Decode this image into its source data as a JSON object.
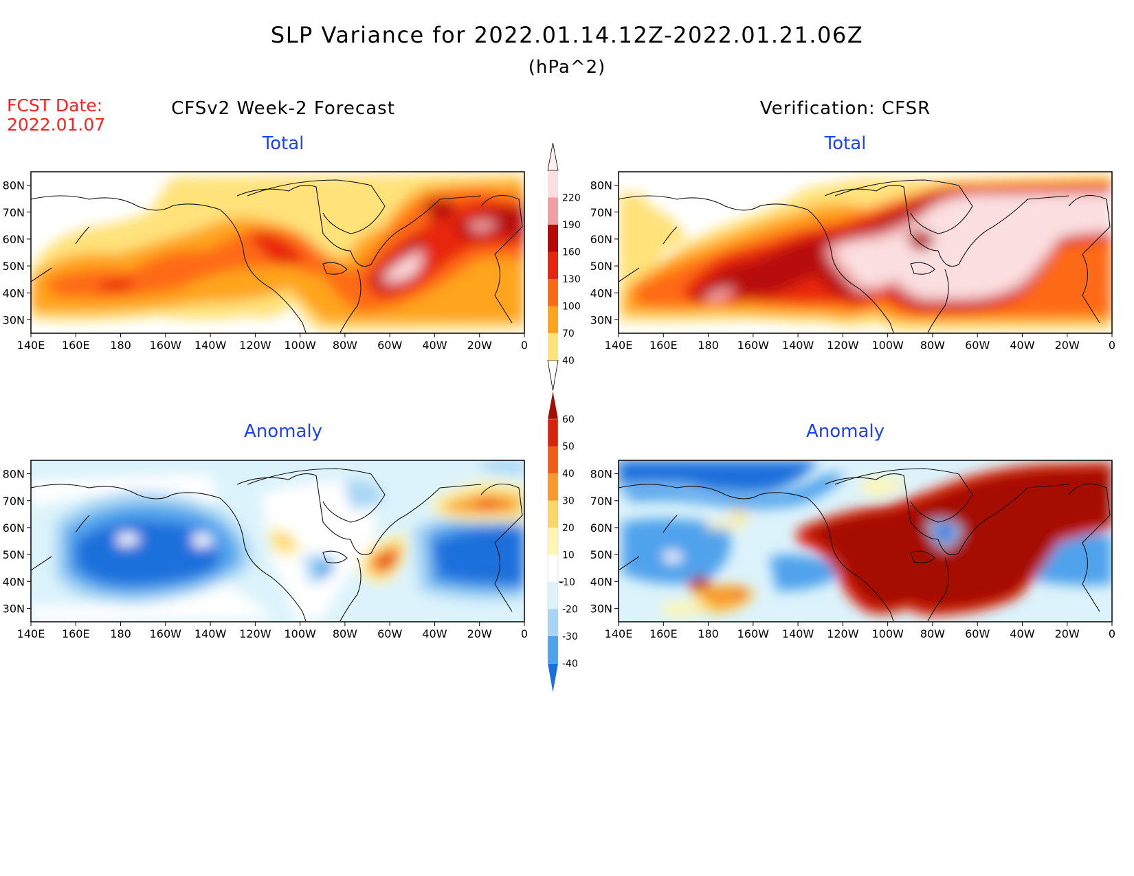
{
  "header": {
    "title": "SLP Variance for 2022.01.14.12Z-2022.01.21.06Z",
    "units": "(hPa^2)",
    "fcst_label": "FCST Date:",
    "fcst_date": "2022.01.07",
    "left_column_title": "CFSv2 Week-2 Forecast",
    "right_column_title": "Verification: CFSR"
  },
  "panels": {
    "fcst_total_title": "Total",
    "verif_total_title": "Total",
    "fcst_anom_title": "Anomaly",
    "verif_anom_title": "Anomaly"
  },
  "axes": {
    "lon_labels": [
      "140E",
      "160E",
      "180",
      "160W",
      "140W",
      "120W",
      "100W",
      "80W",
      "60W",
      "40W",
      "20W",
      "0"
    ],
    "lat_labels_total": [
      "80N",
      "70N",
      "60N",
      "50N",
      "40N",
      "30N"
    ],
    "lat_labels_anom": [
      "80N",
      "70N",
      "60N",
      "50N",
      "40N",
      "30N"
    ],
    "lon_range": [
      140,
      360
    ],
    "lat_range": [
      25,
      85
    ]
  },
  "colors": {
    "total_levels": [
      "40",
      "70",
      "100",
      "130",
      "160",
      "190",
      "220"
    ],
    "total_palette": [
      "#FFE27A",
      "#FFA41E",
      "#FF6A14",
      "#E8250E",
      "#B80709",
      "#F0A0A2",
      "#FBDFE0"
    ],
    "anom_levels": [
      "60",
      "50",
      "40",
      "30",
      "20",
      "10",
      "-10",
      "-20",
      "-30",
      "-40"
    ],
    "anom_palette": [
      "#A50E05",
      "#D8230F",
      "#F05C12",
      "#F89A28",
      "#FBD66A",
      "#FFF6B5",
      "#FFFFFF",
      "#DCF3FB",
      "#A7D6F4",
      "#4FA2EC",
      "#1B6FDC"
    ]
  }
}
